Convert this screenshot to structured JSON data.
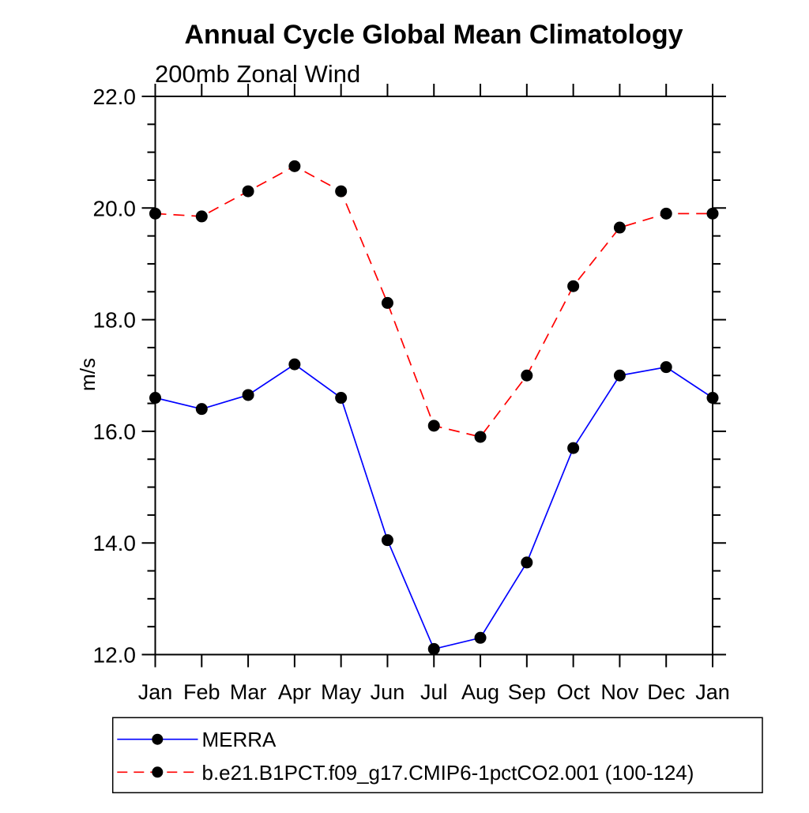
{
  "chart_data": {
    "type": "line",
    "title": "Annual Cycle Global Mean Climatology",
    "subtitle": "200mb Zonal Wind",
    "ylabel": "m/s",
    "xlabel": "",
    "categories": [
      "Jan",
      "Feb",
      "Mar",
      "Apr",
      "May",
      "Jun",
      "Jul",
      "Aug",
      "Sep",
      "Oct",
      "Nov",
      "Dec",
      "Jan"
    ],
    "series": [
      {
        "name": "MERRA",
        "line_color": "#0000ff",
        "line_style": "solid",
        "marker": "filled-circle",
        "marker_color": "#000000",
        "values": [
          16.6,
          16.4,
          16.65,
          17.2,
          16.6,
          14.05,
          12.1,
          12.3,
          13.65,
          15.7,
          17.0,
          17.15,
          16.6
        ]
      },
      {
        "name": "b.e21.B1PCT.f09_g17.CMIP6-1pctCO2.001 (100-124)",
        "line_color": "#ff0000",
        "line_style": "dashed",
        "marker": "filled-circle",
        "marker_color": "#000000",
        "values": [
          19.9,
          19.85,
          20.3,
          20.75,
          20.3,
          18.3,
          16.1,
          15.9,
          17.0,
          18.6,
          19.65,
          19.9,
          19.9
        ]
      }
    ],
    "ylim": [
      12.0,
      22.0
    ],
    "ytick_major_values": [
      12.0,
      14.0,
      16.0,
      18.0,
      20.0,
      22.0
    ],
    "ytick_major_labels": [
      "12.0",
      "14.0",
      "16.0",
      "18.0",
      "20.0",
      "22.0"
    ],
    "ytick_minor_step": 0.5,
    "grid": false,
    "axis_color": "#000000",
    "legend_position": "bottom"
  }
}
